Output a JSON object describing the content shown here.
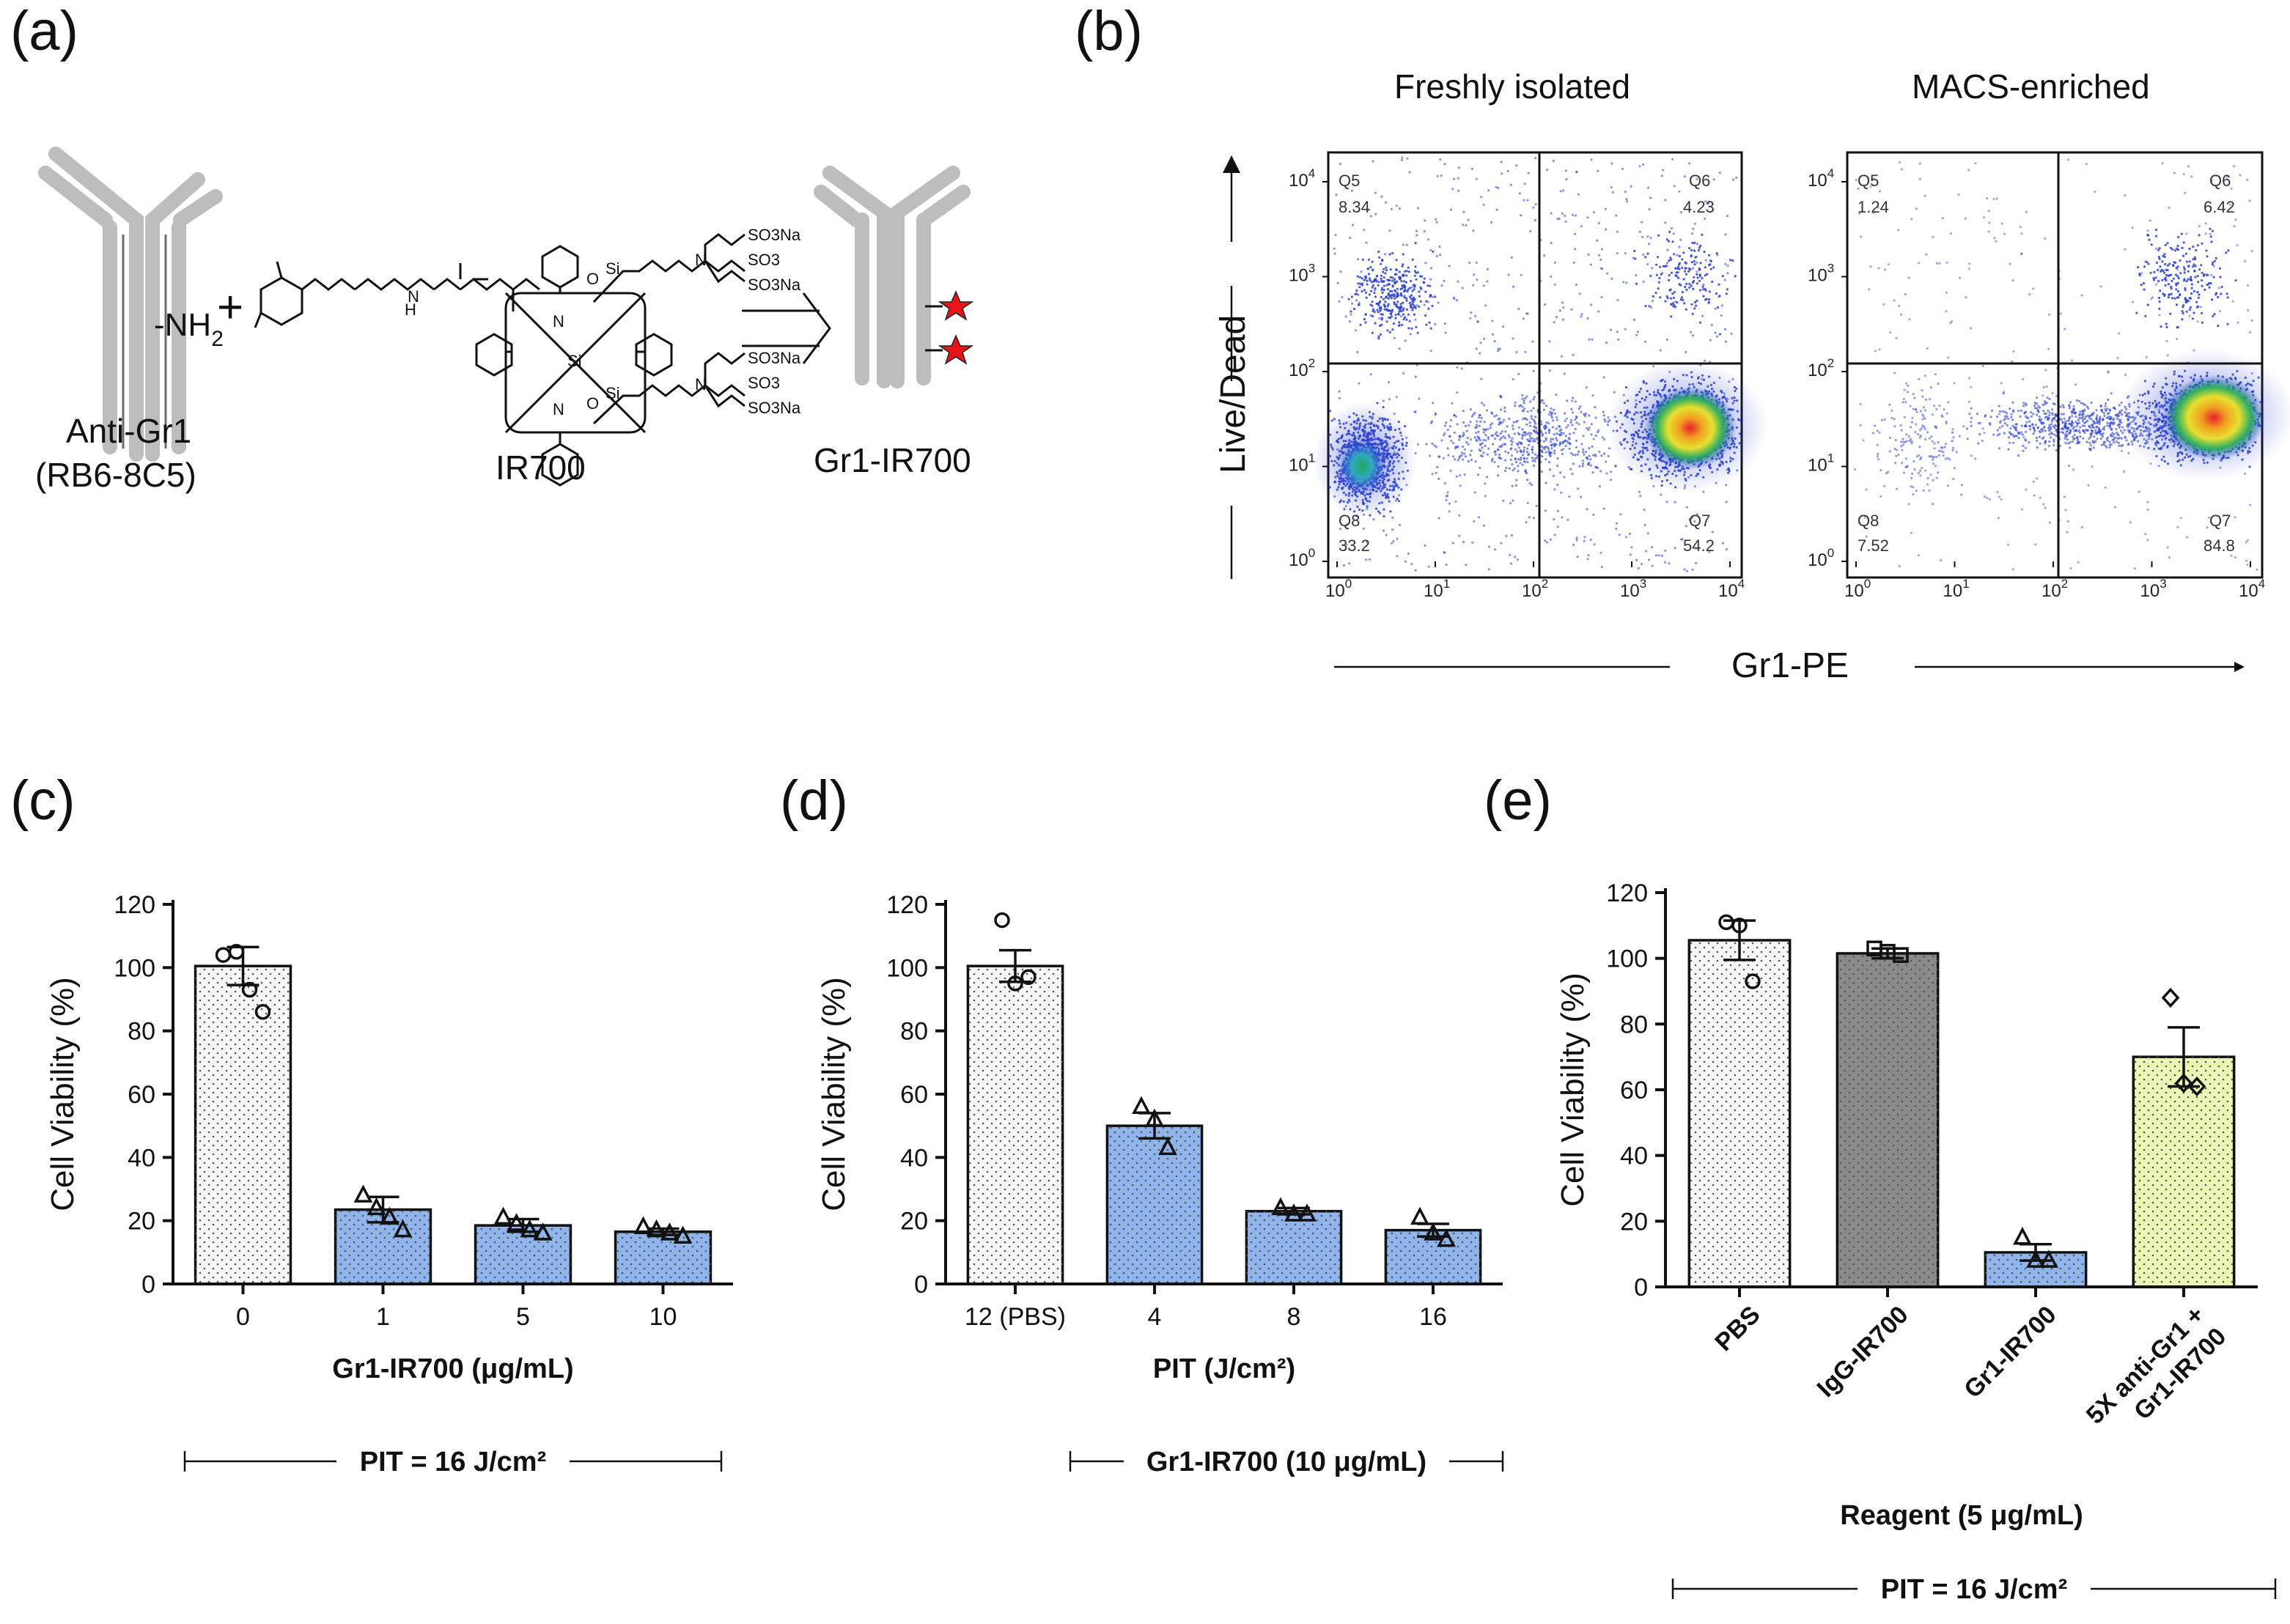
{
  "panel_labels": {
    "a": "(a)",
    "b": "(b)",
    "c": "(c)",
    "d": "(d)",
    "e": "(e)"
  },
  "panel_a": {
    "antibody_label": "Anti-Gr1",
    "antibody_clone": "(RB6-8C5)",
    "amine": "NH",
    "amine_sub": "2",
    "plus": "+",
    "dye_label": "IR700",
    "product_label": "Gr1-IR700",
    "chem_labels": [
      "SO3Na",
      "SO3",
      "SO3Na",
      "SO3Na",
      "SO3",
      "SO3Na",
      "Si",
      "Si",
      "Si",
      "N",
      "N",
      "N",
      "N",
      "O",
      "O",
      "N",
      "H"
    ],
    "colors": {
      "antibody": "#bdbdbd",
      "star": "#e8141a"
    }
  },
  "panel_b": {
    "plots": [
      {
        "title": "Freshly isolated",
        "quadrants": {
          "q5": {
            "name": "Q5",
            "value": "8.34"
          },
          "q6": {
            "name": "Q6",
            "value": "4.23"
          },
          "q8": {
            "name": "Q8",
            "value": "33.2"
          },
          "q7": {
            "name": "Q7",
            "value": "54.2"
          }
        }
      },
      {
        "title": "MACS-enriched",
        "quadrants": {
          "q5": {
            "name": "Q5",
            "value": "1.24"
          },
          "q6": {
            "name": "Q6",
            "value": "6.42"
          },
          "q8": {
            "name": "Q8",
            "value": "7.52"
          },
          "q7": {
            "name": "Q7",
            "value": "84.8"
          }
        }
      }
    ],
    "y_axis_label": "Live/Dead",
    "x_axis_label": "Gr1-PE",
    "tick_base": "10",
    "tick_exponents": [
      "0",
      "1",
      "2",
      "3",
      "4"
    ]
  },
  "chart_data": [
    {
      "type": "bar",
      "panel": "c",
      "categories": [
        "0",
        "1",
        "5",
        "10"
      ],
      "values": [
        100.5,
        23.5,
        18.5,
        16.5
      ],
      "errors": [
        6.0,
        4.0,
        2.0,
        1.0
      ],
      "points": [
        [
          104,
          105,
          93,
          86
        ],
        [
          28,
          24,
          21,
          17
        ],
        [
          21,
          19,
          17,
          16
        ],
        [
          18,
          17,
          16,
          15
        ]
      ],
      "markers": [
        "circle",
        "triangle",
        "triangle",
        "triangle"
      ],
      "fills": [
        "#f7f7f7",
        "#8fb5ec",
        "#8fb5ec",
        "#8fb5ec"
      ],
      "xlabel": "Gr1-IR700 (μg/mL)",
      "ylabel": "Cell Viability (%)",
      "ylim": [
        0,
        120
      ],
      "yticks": [
        "0",
        "20",
        "40",
        "60",
        "80",
        "100",
        "120"
      ],
      "bracket_label": "PIT = 16 J/cm²"
    },
    {
      "type": "bar",
      "panel": "d",
      "categories": [
        "12 (PBS)",
        "4",
        "8",
        "16"
      ],
      "values": [
        100.5,
        50.0,
        23.0,
        17.0
      ],
      "errors": [
        5.0,
        4.0,
        1.0,
        2.0
      ],
      "points": [
        [
          115,
          95,
          97
        ],
        [
          56,
          52,
          43
        ],
        [
          24,
          22,
          22
        ],
        [
          21,
          16,
          14
        ]
      ],
      "markers": [
        "circle",
        "triangle",
        "triangle",
        "triangle"
      ],
      "fills": [
        "#f7f7f7",
        "#8fb5ec",
        "#8fb5ec",
        "#8fb5ec"
      ],
      "xlabel": "PIT (J/cm²)",
      "ylabel": "Cell Viability (%)",
      "ylim": [
        0,
        120
      ],
      "yticks": [
        "0",
        "20",
        "40",
        "60",
        "80",
        "100",
        "120"
      ],
      "bracket_label": "Gr1-IR700 (10 μg/mL)"
    },
    {
      "type": "bar",
      "panel": "e",
      "categories": [
        "PBS",
        "IgG-IR700",
        "Gr1-IR700",
        "5X anti-Gr1 + Gr1-IR700"
      ],
      "values": [
        105.5,
        101.5,
        10.5,
        70.0
      ],
      "errors": [
        6.0,
        1.5,
        2.5,
        9.0
      ],
      "points": [
        [
          111,
          110,
          93
        ],
        [
          103,
          102,
          101
        ],
        [
          15,
          8,
          8
        ],
        [
          88,
          62,
          61
        ]
      ],
      "markers": [
        "circle",
        "square",
        "triangle",
        "diamond"
      ],
      "fills": [
        "#f7f7f7",
        "#8a8a8a",
        "#8fb5ec",
        "#eaf7b5"
      ],
      "xlabel": "Reagent (5 μg/mL)",
      "ylabel": "Cell Viability (%)",
      "ylim": [
        0,
        120
      ],
      "yticks": [
        "0",
        "20",
        "40",
        "60",
        "80",
        "100",
        "120"
      ],
      "bracket_label": "PIT = 16 J/cm²"
    }
  ]
}
